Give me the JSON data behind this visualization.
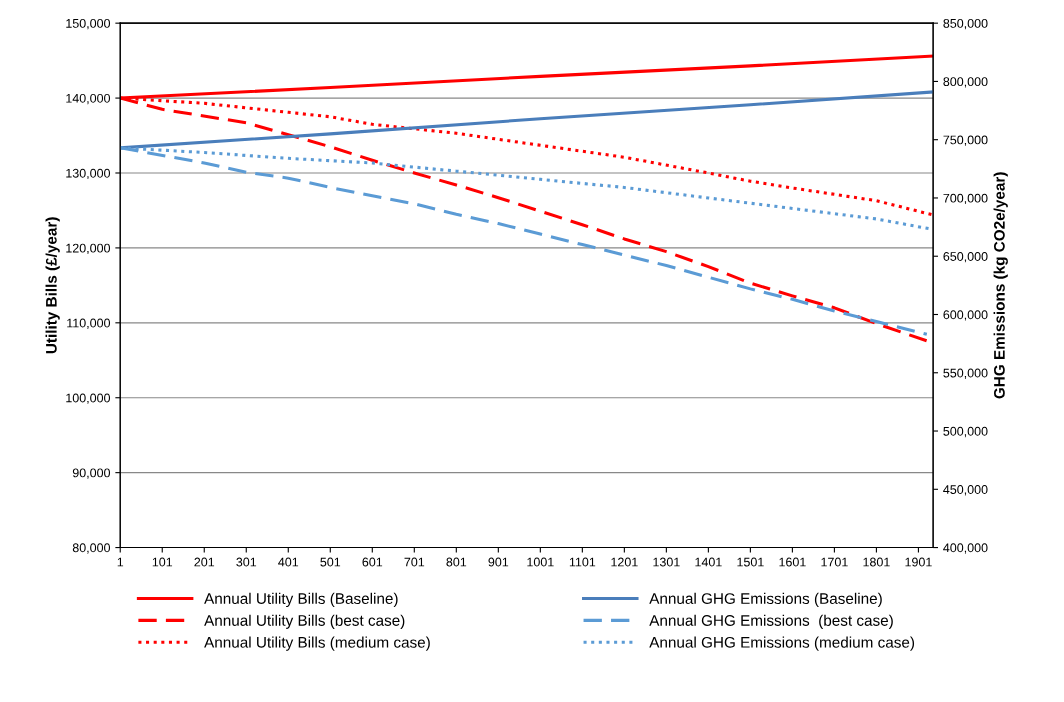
{
  "chart_data": {
    "type": "line",
    "ylabel": "Utility Bills (£/year)",
    "y2label": "GHG Emissions (kg CO2e/year)",
    "xlim": [
      1,
      1936
    ],
    "xticks": [
      1,
      101,
      201,
      301,
      401,
      501,
      601,
      701,
      801,
      901,
      1001,
      1101,
      1201,
      1301,
      1401,
      1501,
      1601,
      1701,
      1801,
      1901
    ],
    "ylim": [
      80000,
      150000
    ],
    "yticks": [
      {
        "value": 80000,
        "label": "80,000"
      },
      {
        "value": 90000,
        "label": "90,000"
      },
      {
        "value": 100000,
        "label": "100,000"
      },
      {
        "value": 110000,
        "label": "110,000"
      },
      {
        "value": 120000,
        "label": "120,000"
      },
      {
        "value": 130000,
        "label": "130,000"
      },
      {
        "value": 140000,
        "label": "140,000"
      },
      {
        "value": 150000,
        "label": "150,000"
      }
    ],
    "y2lim": [
      400000,
      850000
    ],
    "y2ticks": [
      {
        "value": 400000,
        "label": "400,000"
      },
      {
        "value": 450000,
        "label": "450,000"
      },
      {
        "value": 500000,
        "label": "500,000"
      },
      {
        "value": 550000,
        "label": "550,000"
      },
      {
        "value": 600000,
        "label": "600,000"
      },
      {
        "value": 650000,
        "label": "650,000"
      },
      {
        "value": 700000,
        "label": "700,000"
      },
      {
        "value": 750000,
        "label": "750,000"
      },
      {
        "value": 800000,
        "label": "800,000"
      },
      {
        "value": 850000,
        "label": "850,000"
      }
    ],
    "grid": "y",
    "legend": "bottom",
    "marker": "none",
    "series": [
      {
        "name": "Annual Utility Bills (Baseline)",
        "color": "#ff0000",
        "line_style": "solid",
        "x": [
          1,
          501,
          1001,
          1501,
          1936
        ],
        "values": [
          140000,
          141400,
          142900,
          144300,
          145600
        ]
      },
      {
        "name": "Annual Utility Bills (best case)",
        "color": "#ff0000",
        "line_style": "dashed",
        "x": [
          1,
          101,
          301,
          401,
          501,
          601,
          701,
          801,
          901,
          1001,
          1101,
          1201,
          1301,
          1401,
          1501,
          1601,
          1701,
          1801,
          1936
        ],
        "values": [
          140000,
          138500,
          136700,
          135100,
          133500,
          131700,
          130000,
          128400,
          126700,
          124900,
          123100,
          121200,
          119500,
          117500,
          115300,
          113600,
          112000,
          109900,
          107300
        ]
      },
      {
        "name": "Annual Utility Bills (medium case)",
        "color": "#ff0000",
        "line_style": "dotted",
        "x": [
          1,
          201,
          401,
          501,
          601,
          801,
          901,
          1001,
          1201,
          1401,
          1501,
          1601,
          1801,
          1936
        ],
        "values": [
          140000,
          139300,
          138100,
          137500,
          136500,
          135300,
          134500,
          133700,
          132100,
          130000,
          128900,
          128000,
          126300,
          124400
        ]
      },
      {
        "name": "Annual GHG Emissions (Baseline)",
        "color": "#4a7ebb",
        "line_style": "solid",
        "axis": "y2",
        "x": [
          1,
          501,
          1001,
          1501,
          1936
        ],
        "values": [
          743000,
          755000,
          768000,
          780000,
          791000
        ]
      },
      {
        "name": "Annual GHG Emissions  (best case)",
        "color": "#5b9bd5",
        "line_style": "dashed",
        "axis": "y2",
        "x": [
          1,
          201,
          301,
          401,
          501,
          601,
          701,
          801,
          901,
          1001,
          1101,
          1201,
          1301,
          1401,
          1501,
          1601,
          1701,
          1801,
          1921
        ],
        "values": [
          743000,
          730000,
          722000,
          717000,
          709000,
          702000,
          695000,
          686000,
          678000,
          669000,
          660000,
          651000,
          642000,
          632000,
          622000,
          613000,
          603000,
          594000,
          583000
        ]
      },
      {
        "name": "Annual GHG Emissions (medium case)",
        "color": "#5b9bd5",
        "line_style": "dotted",
        "axis": "y2",
        "x": [
          1,
          201,
          401,
          601,
          801,
          1001,
          1201,
          1401,
          1601,
          1801,
          1936
        ],
        "values": [
          743000,
          739000,
          734000,
          730000,
          723000,
          716000,
          709000,
          700000,
          691000,
          682000,
          673000
        ]
      }
    ]
  }
}
